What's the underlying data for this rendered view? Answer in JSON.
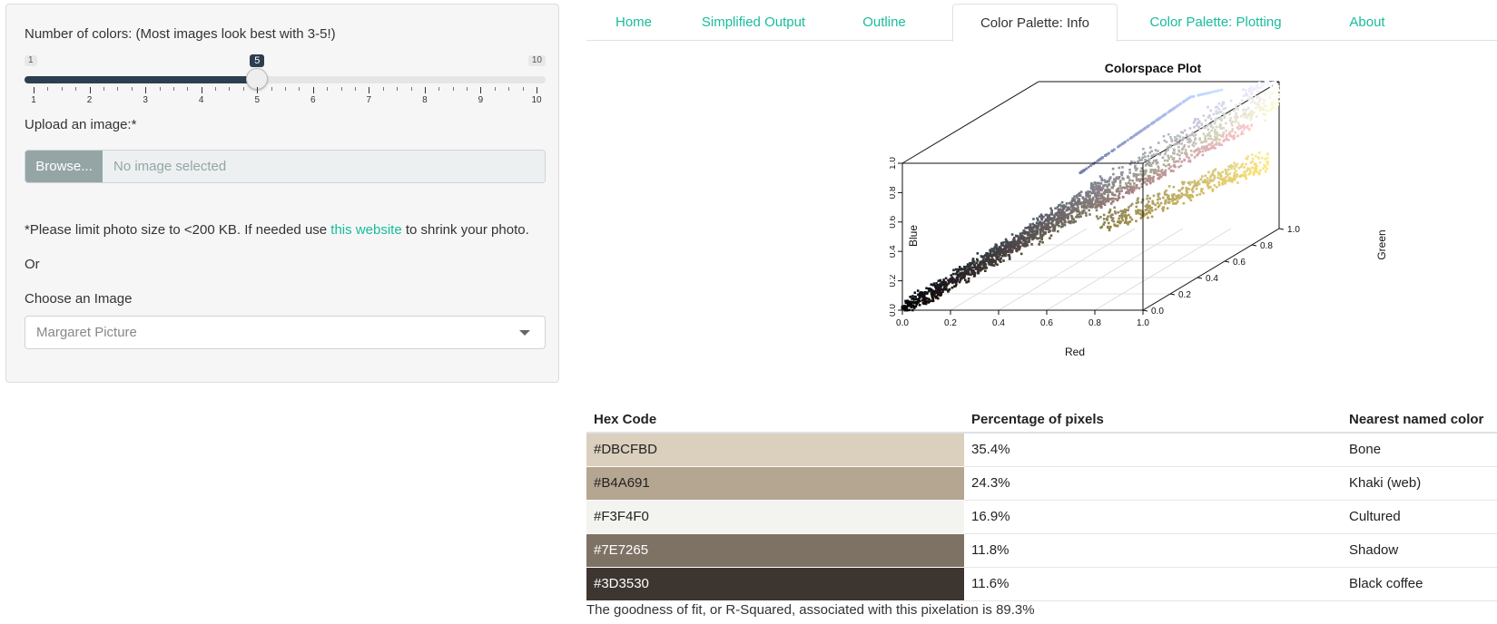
{
  "sidebar": {
    "colors_label": "Number of colors: (Most images look best with 3-5!)",
    "slider": {
      "min": 1,
      "max": 10,
      "value": 5,
      "min_label": "1",
      "max_label": "10",
      "value_label": "5",
      "ticks": [
        "1",
        "2",
        "3",
        "4",
        "5",
        "6",
        "7",
        "8",
        "9",
        "10"
      ]
    },
    "upload_label": "Upload an image:*",
    "browse_label": "Browse...",
    "file_placeholder": "No image selected",
    "note_prefix": "*Please limit photo size to <200 KB. If needed use ",
    "note_link": "this website",
    "note_suffix": " to shrink your photo.",
    "or_label": "Or",
    "choose_label": "Choose an Image",
    "choose_value": "Margaret Picture"
  },
  "tabs": [
    {
      "label": "Home"
    },
    {
      "label": "Simplified Output"
    },
    {
      "label": "Outline"
    },
    {
      "label": "Color Palette: Info",
      "active": true
    },
    {
      "label": "Color Palette: Plotting"
    },
    {
      "label": "About"
    }
  ],
  "chart_data": {
    "type": "scatter",
    "title": "Colorspace Plot",
    "xlabel": "Red",
    "ylabel": "Blue",
    "zlabel": "Green",
    "xlim": [
      0,
      1
    ],
    "ylim": [
      0,
      1
    ],
    "zlim": [
      0,
      1
    ],
    "x_ticks": [
      "0.0",
      "0.2",
      "0.4",
      "0.6",
      "0.8",
      "1.0"
    ],
    "y_ticks": [
      "0.0",
      "0.2",
      "0.4",
      "0.6",
      "0.8",
      "1.0"
    ],
    "z_ticks": [
      "0.0",
      "0.2",
      "0.4",
      "0.6",
      "0.8",
      "1.0"
    ],
    "legend": "none"
  },
  "palette_table": {
    "headers": [
      "Hex Code",
      "Percentage of pixels",
      "Nearest named color"
    ],
    "rows": [
      {
        "hex": "#DBCFBD",
        "percent": "35.4%",
        "name": "Bone",
        "text_color": "#222222"
      },
      {
        "hex": "#B4A691",
        "percent": "24.3%",
        "name": "Khaki (web)",
        "text_color": "#222222"
      },
      {
        "hex": "#F3F4F0",
        "percent": "16.9%",
        "name": "Cultured",
        "text_color": "#222222"
      },
      {
        "hex": "#7E7265",
        "percent": "11.8%",
        "name": "Shadow",
        "text_color": "#ffffff"
      },
      {
        "hex": "#3D3530",
        "percent": "11.6%",
        "name": "Black coffee",
        "text_color": "#ffffff"
      }
    ],
    "fit_text": "The goodness of fit, or R-Squared, associated with this pixelation is 89.3%"
  }
}
